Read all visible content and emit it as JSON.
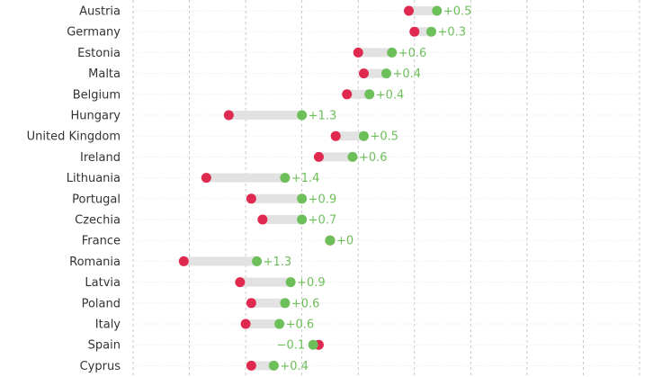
{
  "colors": {
    "before": "#e0294f",
    "after": "#6dbf5a",
    "bar": "#e2e2e2",
    "grid": "#bdbdbd",
    "label": "#333333",
    "diff_label": "#6dbf5a"
  },
  "chart_data": {
    "type": "dumbbell",
    "title": "",
    "xlabel": "",
    "ylabel": "",
    "grid": "vertical dashed",
    "legend": "none",
    "xlim": [
      0,
      9
    ],
    "categories": [
      "Austria",
      "Germany",
      "Estonia",
      "Malta",
      "Belgium",
      "Hungary",
      "United Kingdom",
      "Ireland",
      "Lithuania",
      "Portugal",
      "Czechia",
      "France",
      "Romania",
      "Latvia",
      "Poland",
      "Italy",
      "Spain",
      "Cyprus"
    ],
    "series": [
      {
        "values": [
          4.9,
          5.0,
          4.0,
          4.1,
          3.8,
          1.7,
          3.6,
          3.3,
          1.3,
          2.1,
          2.3,
          3.5,
          0.9,
          1.9,
          2.1,
          2.0,
          3.3,
          2.1
        ]
      },
      {
        "values": [
          5.4,
          5.3,
          4.6,
          4.5,
          4.2,
          3.0,
          4.1,
          3.9,
          2.7,
          3.0,
          3.0,
          3.5,
          2.2,
          2.8,
          2.7,
          2.6,
          3.2,
          2.5
        ]
      }
    ],
    "diff_labels": [
      "+0.5",
      "+0.3",
      "+0.6",
      "+0.4",
      "+0.4",
      "+1.3",
      "+0.5",
      "+0.6",
      "+1.4",
      "+0.9",
      "+0.7",
      "+0",
      "+1.3",
      "+0.9",
      "+0.6",
      "+0.6",
      "−0.1",
      "+0.4"
    ]
  }
}
